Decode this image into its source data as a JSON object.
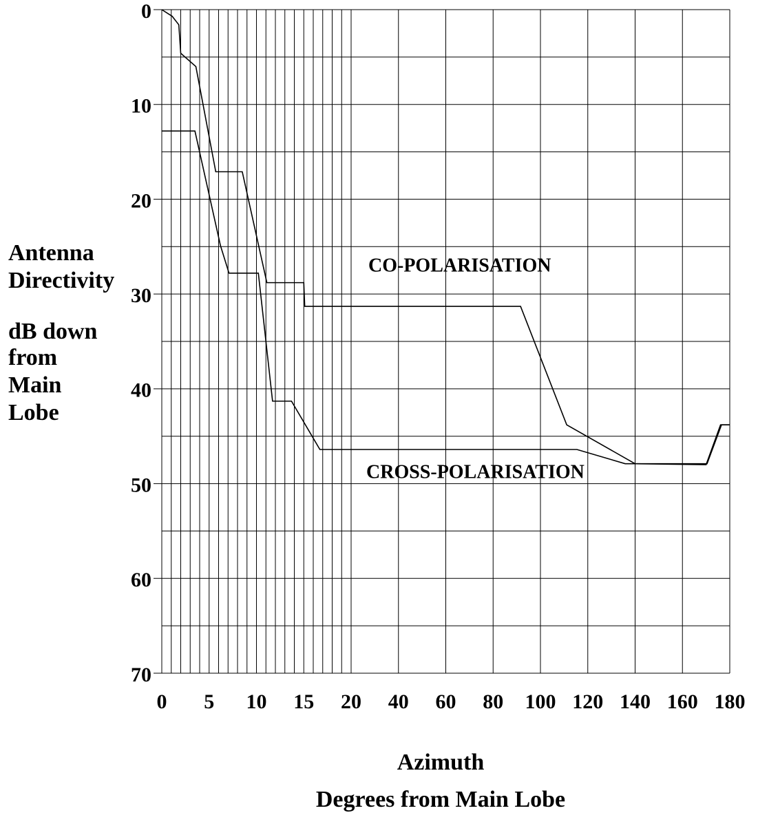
{
  "chart_data": {
    "type": "line",
    "ylabel": [
      "Antenna",
      "Directivity",
      "dB down",
      "from",
      "Main",
      "Lobe"
    ],
    "xlabel": [
      "Azimuth",
      "Degrees from Main Lobe"
    ],
    "annotations": [
      "CO-POLARISATION",
      "CROSS-POLARISATION"
    ],
    "xlim": [
      0,
      180
    ],
    "xticks": [
      0,
      5,
      10,
      15,
      20,
      40,
      60,
      80,
      100,
      120,
      140,
      160,
      180
    ],
    "xminorticks": [
      1,
      2,
      3,
      4,
      6,
      7,
      8,
      9,
      11,
      12,
      13,
      14,
      16,
      17,
      18,
      19
    ],
    "ylim": [
      0,
      70
    ],
    "yticks": [
      0,
      10,
      20,
      30,
      40,
      50,
      60,
      70
    ],
    "yminorticks": [
      5,
      15,
      25,
      35,
      45,
      55,
      65
    ],
    "y_inverted": true,
    "grid": true,
    "series": [
      {
        "name": "CO-POLARISATION",
        "color": "#000000",
        "x": [
          0,
          1.1,
          1.8,
          2.0,
          3.6,
          5.7,
          8.5,
          11.1,
          15.0,
          15.1,
          91.6,
          111.1,
          140,
          170.4,
          176.5,
          180
        ],
        "values": [
          0,
          0.7,
          1.6,
          4.6,
          6.0,
          17.1,
          17.1,
          28.8,
          28.8,
          31.3,
          31.3,
          43.8,
          47.9,
          47.9,
          43.8,
          43.8
        ]
      },
      {
        "name": "CROSS-POLARISATION",
        "color": "#000000",
        "x": [
          0,
          3.5,
          6.2,
          7.1,
          10.2,
          11.7,
          13.7,
          16.7,
          115.4,
          135.8,
          140,
          170.0,
          176.1,
          180
        ],
        "values": [
          12.8,
          12.8,
          24.9,
          27.8,
          27.8,
          41.3,
          41.3,
          46.4,
          46.4,
          47.9,
          47.9,
          48.0,
          43.8,
          43.8
        ]
      }
    ]
  }
}
